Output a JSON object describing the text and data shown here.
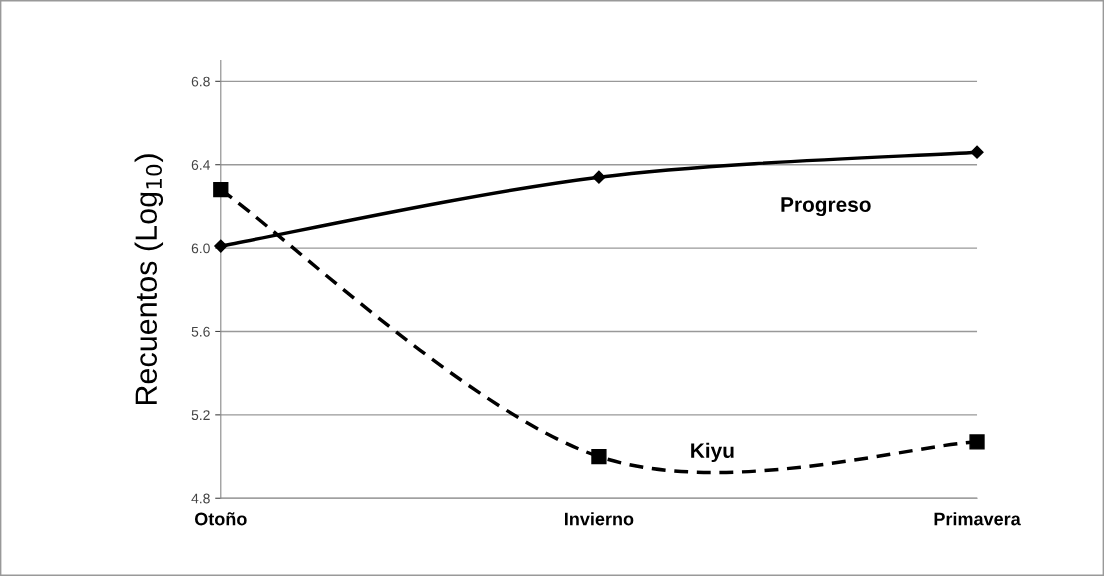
{
  "chart_data": {
    "type": "line",
    "ylabel": "Recuentos (Log$_{10}$)",
    "categories": [
      "Otoño",
      "Invierno",
      "Primavera"
    ],
    "series": [
      {
        "name": "Progreso",
        "color": "#000000",
        "values": [
          6.01,
          6.34,
          6.46
        ],
        "marker": "diamond",
        "line_style": "solid"
      },
      {
        "name": "Kiyu",
        "color": "#000000",
        "values": [
          6.28,
          5.0,
          5.07
        ],
        "marker": "square",
        "line_style": "dashed"
      }
    ],
    "ylim": [
      4.8,
      6.9
    ],
    "yticks": [
      {
        "value": 4.8,
        "label": "4.8"
      },
      {
        "value": 5.2,
        "label": "5.2"
      },
      {
        "value": 5.6,
        "label": "5.6"
      },
      {
        "value": 6.0,
        "label": "6.0"
      },
      {
        "value": 6.4,
        "label": "6.4"
      },
      {
        "value": 6.8,
        "label": "6.8"
      }
    ],
    "grid": "y",
    "legend": false
  }
}
